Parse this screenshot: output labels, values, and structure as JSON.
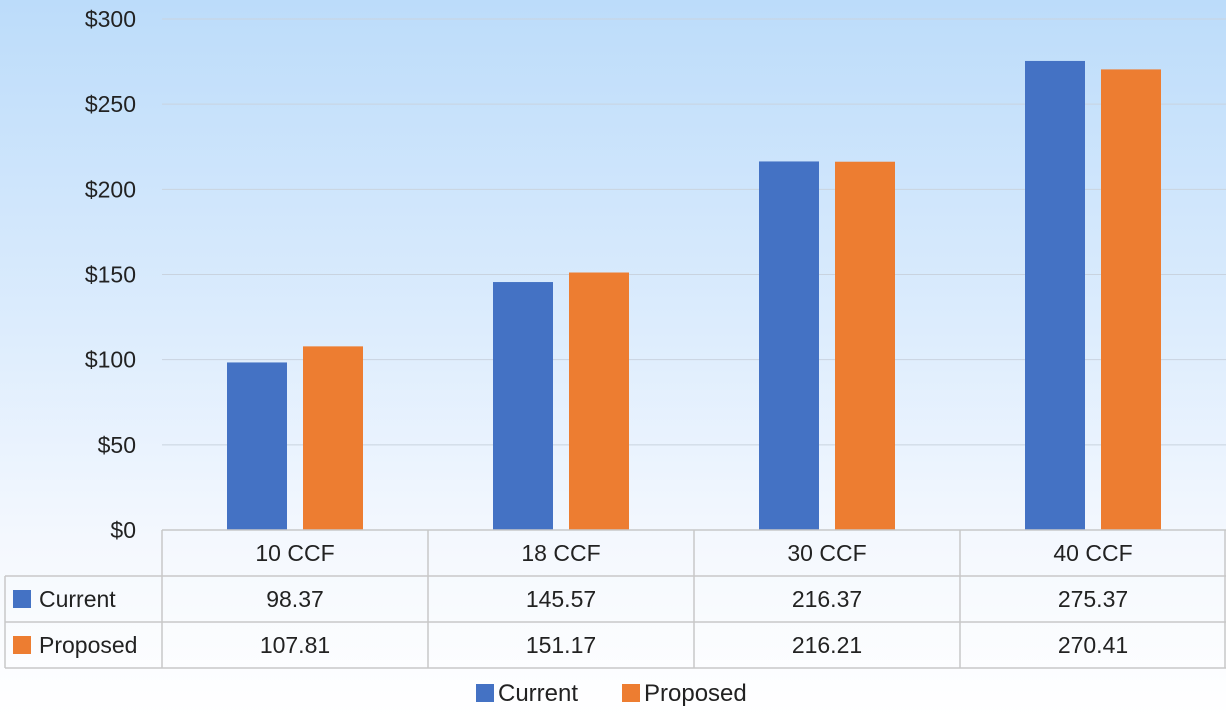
{
  "chart_data": {
    "type": "bar",
    "title": "",
    "xlabel": "",
    "ylabel": "",
    "categories": [
      "10 CCF",
      "18 CCF",
      "30 CCF",
      "40 CCF"
    ],
    "series": [
      {
        "name": "Current",
        "values": [
          98.37,
          145.57,
          216.37,
          275.37
        ],
        "color": "#4472c4"
      },
      {
        "name": "Proposed",
        "values": [
          107.81,
          151.17,
          216.21,
          270.41
        ],
        "color": "#ed7d31"
      }
    ],
    "ylim": [
      0,
      300
    ],
    "yticks": [
      0,
      50,
      100,
      150,
      200,
      250,
      300
    ],
    "ytick_labels": [
      "$0",
      "$50",
      "$100",
      "$150",
      "$200",
      "$250",
      "$300"
    ],
    "value_labels": [
      [
        "98.37",
        "145.57",
        "216.37",
        "275.37"
      ],
      [
        "107.81",
        "151.17",
        "216.21",
        "270.41"
      ]
    ],
    "grid": true,
    "data_table": true,
    "legend_position": "bottom-center"
  }
}
